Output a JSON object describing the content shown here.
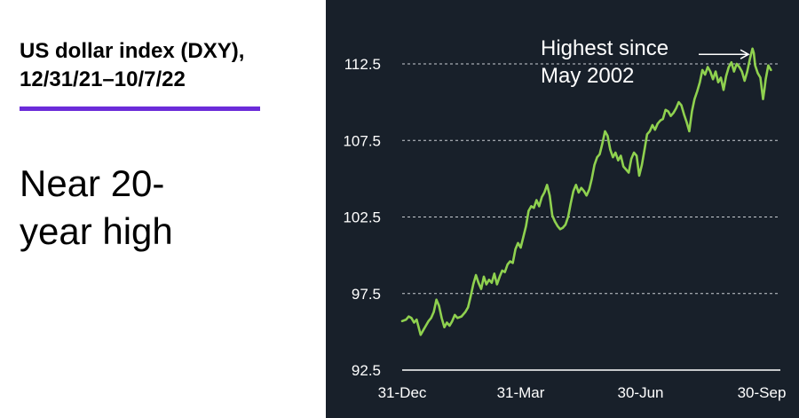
{
  "headline": {
    "title_line1": "US dollar index (DXY),",
    "title_line2": "12/31/21–10/7/22",
    "subtitle_line1": "Near 20-",
    "subtitle_line2": "year high"
  },
  "colors": {
    "accent": "#6b2bd9",
    "chart_bg": "#18202a",
    "line": "#8fd14f",
    "text_light": "#ffffff"
  },
  "chart_data": {
    "type": "line",
    "title": "US dollar index (DXY), 12/31/21–10/7/22",
    "xlabel": "",
    "ylabel": "",
    "ylim": [
      92.5,
      114.5
    ],
    "yticks": [
      92.5,
      97.5,
      102.5,
      107.5,
      112.5
    ],
    "ytick_labels": [
      "92.5",
      "97.5",
      "102.5",
      "107.5",
      "112.5"
    ],
    "xlim": [
      0,
      281
    ],
    "xticks": [
      0,
      90,
      181,
      273
    ],
    "xtick_labels": [
      "31-Dec",
      "31-Mar",
      "30-Jun",
      "30-Sep"
    ],
    "grid": "horizontal dashed",
    "annotation": {
      "line1": "Highest since",
      "line2": "May 2002",
      "target_x": 267,
      "target_y": 113.3
    },
    "series": [
      {
        "name": "",
        "x": [
          0,
          3,
          5,
          7,
          9,
          11,
          14,
          16,
          18,
          20,
          22,
          24,
          26,
          28,
          30,
          32,
          34,
          36,
          38,
          40,
          42,
          45,
          48,
          50,
          52,
          54,
          56,
          58,
          60,
          62,
          64,
          66,
          68,
          70,
          72,
          74,
          76,
          78,
          80,
          82,
          84,
          86,
          88,
          90,
          92,
          94,
          96,
          98,
          100,
          102,
          104,
          106,
          108,
          110,
          112,
          114,
          116,
          118,
          120,
          122,
          124,
          126,
          128,
          130,
          132,
          134,
          136,
          138,
          140,
          142,
          144,
          146,
          148,
          150,
          152,
          154,
          156,
          158,
          160,
          162,
          164,
          166,
          168,
          170,
          172,
          174,
          176,
          178,
          180,
          182,
          184,
          186,
          188,
          190,
          192,
          194,
          196,
          198,
          200,
          202,
          204,
          206,
          208,
          210,
          212,
          214,
          216,
          218,
          220,
          222,
          224,
          226,
          228,
          230,
          232,
          234,
          236,
          238,
          240,
          242,
          244,
          246,
          248,
          250,
          252,
          254,
          256,
          258,
          260,
          262,
          264,
          266,
          267,
          268,
          270,
          272,
          274,
          275,
          276,
          278,
          280
        ],
        "y": [
          95.7,
          95.8,
          96.0,
          95.9,
          95.6,
          95.8,
          94.8,
          95.1,
          95.4,
          95.7,
          95.9,
          96.3,
          97.1,
          96.7,
          95.9,
          95.3,
          95.6,
          95.4,
          95.7,
          96.1,
          95.9,
          96.0,
          96.3,
          96.6,
          97.3,
          98.1,
          98.7,
          98.2,
          97.8,
          98.6,
          98.1,
          98.4,
          98.2,
          98.8,
          98.1,
          98.6,
          99.0,
          98.9,
          99.4,
          99.6,
          99.5,
          100.4,
          100.8,
          100.5,
          101.2,
          101.9,
          102.9,
          103.2,
          103.1,
          103.6,
          103.2,
          103.8,
          104.1,
          104.6,
          103.9,
          102.6,
          102.2,
          101.9,
          101.7,
          101.8,
          102.0,
          102.5,
          103.4,
          104.2,
          104.6,
          104.1,
          104.4,
          104.2,
          103.9,
          104.3,
          105.0,
          105.9,
          106.4,
          106.6,
          107.3,
          108.1,
          107.8,
          106.9,
          106.4,
          106.7,
          106.2,
          106.5,
          105.8,
          105.6,
          105.4,
          106.3,
          106.7,
          106.5,
          105.2,
          105.9,
          106.9,
          107.9,
          108.1,
          108.5,
          108.2,
          108.6,
          108.8,
          108.9,
          109.5,
          109.4,
          109.1,
          109.3,
          109.6,
          110.0,
          109.8,
          109.2,
          108.7,
          108.1,
          109.4,
          110.2,
          110.7,
          111.3,
          112.1,
          111.8,
          112.3,
          112.0,
          111.5,
          112.0,
          111.3,
          111.6,
          110.8,
          111.7,
          112.3,
          112.6,
          112.0,
          112.5,
          112.3,
          112.0,
          111.4,
          112.0,
          112.8,
          113.5,
          113.2,
          112.4,
          111.9,
          111.6,
          110.2,
          110.8,
          111.5,
          112.4,
          112.1
        ]
      }
    ]
  }
}
